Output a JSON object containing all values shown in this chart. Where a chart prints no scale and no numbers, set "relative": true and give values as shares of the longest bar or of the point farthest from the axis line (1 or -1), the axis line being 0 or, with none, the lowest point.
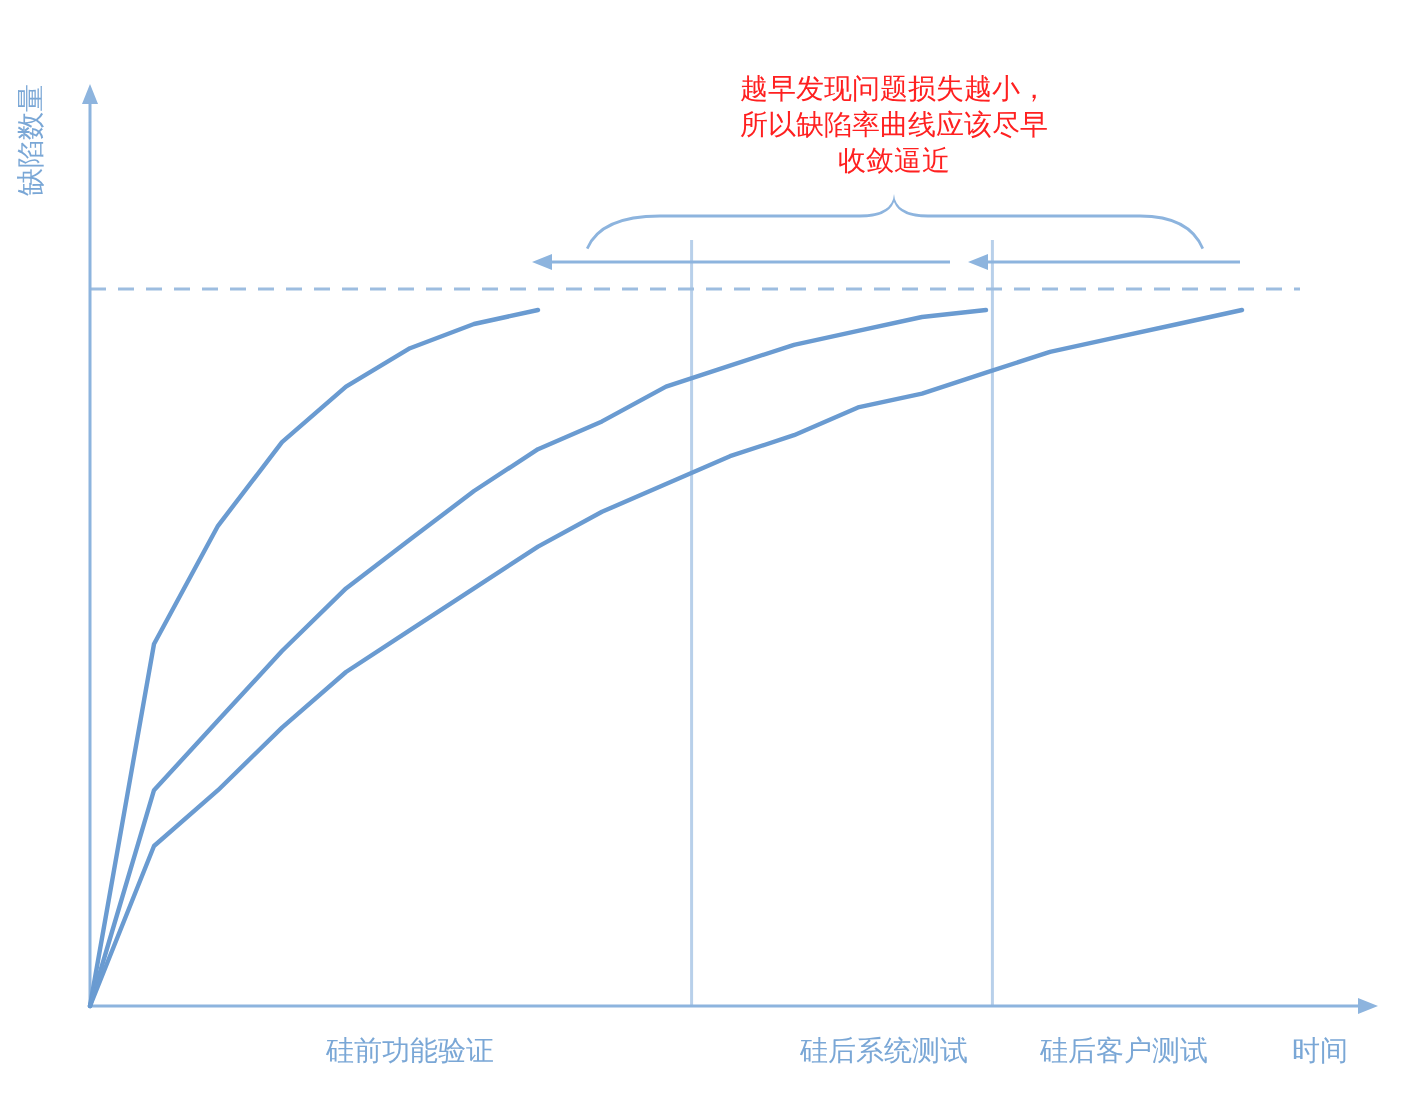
{
  "chart_data": {
    "type": "line",
    "relative": true,
    "xlabel": "时间",
    "ylabel": "缺陷数量",
    "line_style": "solid",
    "categories": [
      null,
      null,
      null,
      null,
      null,
      null,
      null,
      null,
      null,
      null,
      null,
      null,
      null,
      null,
      null,
      null,
      null,
      null,
      null,
      null,
      null
    ],
    "series": [
      {
        "color": "#6a9bd1",
        "values": [
          0,
          0.52,
          0.69,
          0.81,
          0.89,
          0.945,
          0.98,
          1.0,
          null,
          null,
          null,
          null,
          null,
          null,
          null,
          null,
          null,
          null,
          null,
          null,
          null
        ]
      },
      {
        "color": "#6a9bd1",
        "values": [
          0,
          0.31,
          0.41,
          0.51,
          0.6,
          0.67,
          0.74,
          0.8,
          0.84,
          0.89,
          0.92,
          0.95,
          0.97,
          0.99,
          1.0,
          null,
          null,
          null,
          null,
          null,
          null
        ]
      },
      {
        "color": "#6a9bd1",
        "values": [
          0,
          0.23,
          0.31,
          0.4,
          0.48,
          0.54,
          0.6,
          0.66,
          0.71,
          0.75,
          0.79,
          0.82,
          0.86,
          0.88,
          0.91,
          0.94,
          0.96,
          0.98,
          1.0,
          null,
          null
        ]
      }
    ],
    "ref_lines": [
      {
        "axis": "y",
        "value": 1.03,
        "line_style": "dashed",
        "color": "#9dbde0"
      }
    ],
    "annotations": [
      "硅前功能验证",
      "硅后系统测试",
      "硅后客户测试",
      "越早发现问题损失越小，所以缺陷率曲线应该尽早收敛逼近"
    ]
  }
}
